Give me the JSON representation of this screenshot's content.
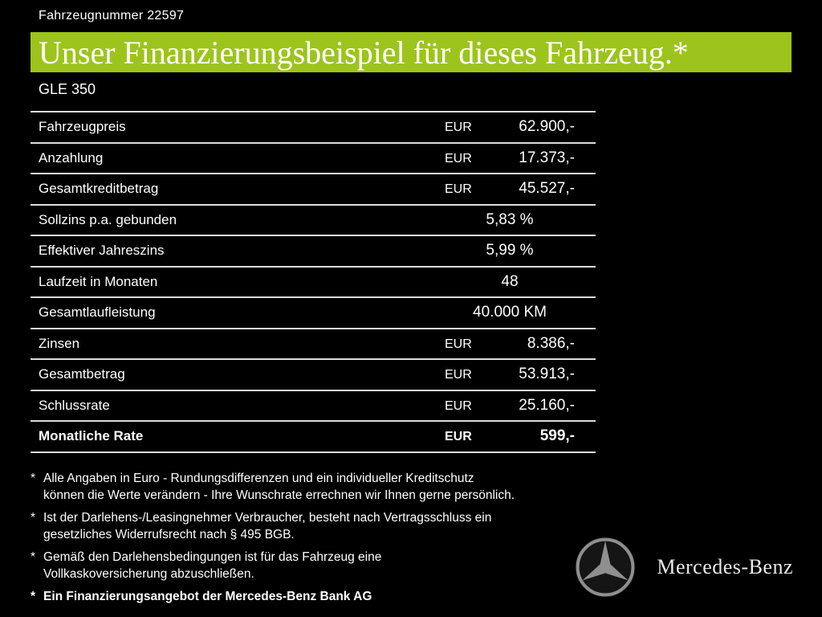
{
  "header": {
    "vehicle_number": "Fahrzeugnummer 22597",
    "title": "Unser Finanzierungsbeispiel für dieses Fahrzeug.*",
    "model": "GLE 350"
  },
  "colors": {
    "background": "#000000",
    "accent_green": "#9dc41d",
    "table_line": "#dcdcdc",
    "text": "#ffffff"
  },
  "table": {
    "rows": [
      {
        "label": "Fahrzeugpreis",
        "currency": "EUR",
        "value": "62.900,-",
        "bold": false
      },
      {
        "label": "Anzahlung",
        "currency": "EUR",
        "value": "17.373,-",
        "bold": false
      },
      {
        "label": "Gesamtkreditbetrag",
        "currency": "EUR",
        "value": "45.527,-",
        "bold": false
      },
      {
        "label": "Sollzins p.a. gebunden",
        "currency": "",
        "value": "5,83 %",
        "bold": false
      },
      {
        "label": "Effektiver Jahreszins",
        "currency": "",
        "value": "5,99 %",
        "bold": false
      },
      {
        "label": "Laufzeit in Monaten",
        "currency": "",
        "value": "48",
        "bold": false
      },
      {
        "label": "Gesamtlaufleistung",
        "currency": "",
        "value": "40.000 KM",
        "bold": false
      },
      {
        "label": "Zinsen",
        "currency": "EUR",
        "value": "8.386,-",
        "bold": false
      },
      {
        "label": "Gesamtbetrag",
        "currency": "EUR",
        "value": "53.913,-",
        "bold": false
      },
      {
        "label": "Schlussrate",
        "currency": "EUR",
        "value": "25.160,-",
        "bold": false
      },
      {
        "label": "Monatliche Rate",
        "currency": "EUR",
        "value": "599,-",
        "bold": true
      }
    ]
  },
  "footnotes": [
    {
      "marker": "*",
      "lines": [
        "Alle Angaben in Euro - Rundungsdifferenzen und ein individueller Kreditschutz",
        "können die Werte verändern - Ihre Wunschrate errechnen wir Ihnen gerne persönlich."
      ],
      "bold": false
    },
    {
      "marker": "*",
      "lines": [
        "Ist der Darlehens-/Leasingnehmer Verbraucher, besteht nach Vertragsschluss ein",
        "gesetzliches Widerrufsrecht nach § 495 BGB."
      ],
      "bold": false
    },
    {
      "marker": "*",
      "lines": [
        "Gemäß den Darlehensbedingungen ist für das Fahrzeug eine",
        "Vollkaskoversicherung abzuschließen."
      ],
      "bold": false
    },
    {
      "marker": "*",
      "lines": [
        "Ein Finanzierungsangebot der Mercedes-Benz Bank AG"
      ],
      "bold": true
    }
  ],
  "brand": {
    "name": "Mercedes-Benz",
    "logo_icon": "mercedes-star-icon"
  }
}
